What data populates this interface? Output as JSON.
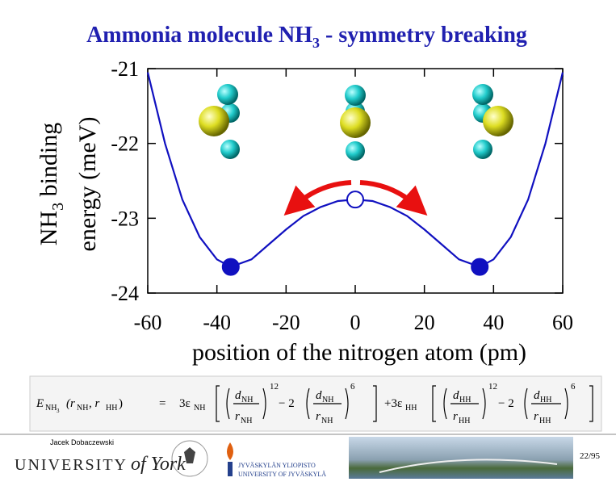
{
  "chart_data": {
    "type": "line",
    "title": [
      "Ammonia molecule NH",
      "3",
      " - symmetry breaking"
    ],
    "y_label": [
      "NH",
      "3",
      " binding",
      "energy (meV)"
    ],
    "x_label": "position of the nitrogen atom (pm)",
    "x": [
      -60,
      -55,
      -50,
      -45,
      -40,
      -36,
      -30,
      -25,
      -20,
      -15,
      -10,
      -5,
      0,
      5,
      10,
      15,
      20,
      25,
      30,
      36,
      40,
      45,
      50,
      55,
      60
    ],
    "series": [
      {
        "color": "#1010c0",
        "values": [
          -21.05,
          -22.0,
          -22.75,
          -23.25,
          -23.55,
          -23.65,
          -23.55,
          -23.35,
          -23.15,
          -22.97,
          -22.85,
          -22.77,
          -22.75,
          -22.77,
          -22.85,
          -22.97,
          -23.15,
          -23.35,
          -23.55,
          -23.65,
          -23.55,
          -23.25,
          -22.75,
          -22.0,
          -21.05
        ]
      }
    ],
    "markers": [
      {
        "x": -36,
        "y": -23.65,
        "filled": true
      },
      {
        "x": 0,
        "y": -22.75,
        "filled": false
      },
      {
        "x": 36,
        "y": -23.65,
        "filled": true
      }
    ],
    "xlim": [
      -60,
      60
    ],
    "xticks": [
      -60,
      -40,
      -20,
      0,
      20,
      40,
      60
    ],
    "ylim": [
      -24,
      -21
    ],
    "yticks": [
      -21,
      -22,
      -23,
      -24
    ]
  },
  "formula": [
    "E",
    "NH",
    "3",
    "(r",
    "NH",
    ", r",
    "HH",
    ")",
    "=",
    "3ε",
    "NH",
    "d",
    "NH",
    "r",
    "NH",
    "12",
    "− 2",
    "d",
    "NH",
    "r",
    "NH",
    "6",
    "+3ε",
    "HH",
    "d",
    "HH",
    "r",
    "HH",
    "12",
    "− 2",
    "d",
    "HH",
    "r",
    "HH",
    "6"
  ],
  "footer": {
    "author": "Jacek Dobaczewski",
    "york": [
      "UNIVERSITY",
      "of York"
    ],
    "jyu": [
      "JYVÄSKYLÄN YLIOPISTO",
      "UNIVERSITY OF JYVÄSKYLÄ"
    ],
    "page": "22/95"
  }
}
